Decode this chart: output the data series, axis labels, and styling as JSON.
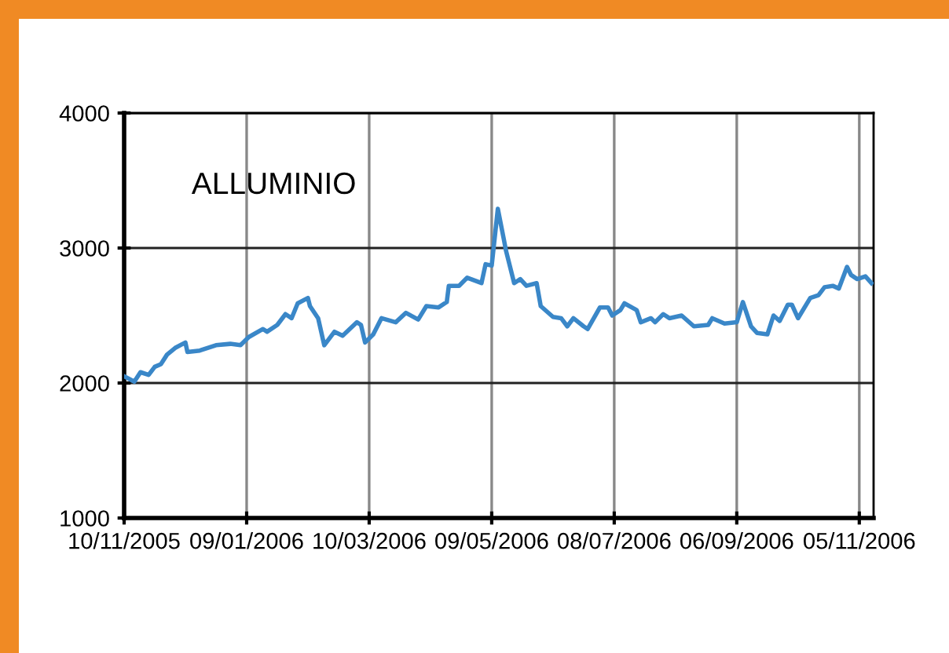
{
  "chart_data": {
    "type": "line",
    "title": "ALLUMINIO",
    "xlim": [
      "2005-11-10",
      "2006-11-12"
    ],
    "ylim": [
      1000,
      4000
    ],
    "xticks": [
      {
        "value": "2005-11-10",
        "label": "10/11/2005"
      },
      {
        "value": "2006-01-09",
        "label": "09/01/2006"
      },
      {
        "value": "2006-03-10",
        "label": "10/03/2006"
      },
      {
        "value": "2006-05-09",
        "label": "09/05/2006"
      },
      {
        "value": "2006-07-08",
        "label": "08/07/2006"
      },
      {
        "value": "2006-09-06",
        "label": "06/09/2006"
      },
      {
        "value": "2006-11-05",
        "label": "05/11/2006"
      }
    ],
    "yticks": [
      1000,
      2000,
      3000,
      4000
    ],
    "grid": true,
    "marker": "none",
    "line_style": "solid",
    "x": [
      "2005-11-10",
      "2005-11-15",
      "2005-11-18",
      "2005-11-22",
      "2005-11-25",
      "2005-11-28",
      "2005-12-01",
      "2005-12-05",
      "2005-12-10",
      "2005-12-11",
      "2005-12-17",
      "2005-12-25",
      "2006-01-01",
      "2006-01-06",
      "2006-01-10",
      "2006-01-17",
      "2006-01-19",
      "2006-01-24",
      "2006-01-28",
      "2006-01-31",
      "2006-02-03",
      "2006-02-08",
      "2006-02-09",
      "2006-02-13",
      "2006-02-16",
      "2006-02-21",
      "2006-02-25",
      "2006-03-04",
      "2006-03-06",
      "2006-03-08",
      "2006-03-12",
      "2006-03-16",
      "2006-03-23",
      "2006-03-28",
      "2006-04-03",
      "2006-04-07",
      "2006-04-13",
      "2006-04-17",
      "2006-04-18",
      "2006-04-23",
      "2006-04-27",
      "2006-05-04",
      "2006-05-06",
      "2006-05-09",
      "2006-05-12",
      "2006-05-15",
      "2006-05-16",
      "2006-05-20",
      "2006-05-23",
      "2006-05-26",
      "2006-05-31",
      "2006-06-02",
      "2006-06-08",
      "2006-06-12",
      "2006-06-15",
      "2006-06-18",
      "2006-06-23",
      "2006-06-25",
      "2006-07-01",
      "2006-07-05",
      "2006-07-07",
      "2006-07-11",
      "2006-07-13",
      "2006-07-19",
      "2006-07-21",
      "2006-07-26",
      "2006-07-28",
      "2006-08-01",
      "2006-08-04",
      "2006-08-10",
      "2006-08-16",
      "2006-08-23",
      "2006-08-25",
      "2006-08-31",
      "2006-09-06",
      "2006-09-09",
      "2006-09-13",
      "2006-09-16",
      "2006-09-21",
      "2006-09-24",
      "2006-09-27",
      "2006-10-01",
      "2006-10-03",
      "2006-10-06",
      "2006-10-12",
      "2006-10-16",
      "2006-10-19",
      "2006-10-23",
      "2006-10-26",
      "2006-10-30",
      "2006-11-01",
      "2006-11-04",
      "2006-11-08",
      "2006-11-11"
    ],
    "series": [
      {
        "color": "#3a87c8",
        "values": [
          2050,
          2010,
          2080,
          2060,
          2120,
          2140,
          2210,
          2260,
          2300,
          2230,
          2240,
          2280,
          2290,
          2280,
          2340,
          2400,
          2380,
          2430,
          2510,
          2480,
          2590,
          2630,
          2570,
          2480,
          2280,
          2380,
          2350,
          2450,
          2430,
          2300,
          2360,
          2480,
          2450,
          2520,
          2470,
          2570,
          2560,
          2600,
          2720,
          2720,
          2780,
          2740,
          2880,
          2870,
          3290,
          3060,
          2980,
          2740,
          2770,
          2720,
          2740,
          2570,
          2490,
          2480,
          2420,
          2480,
          2420,
          2400,
          2560,
          2560,
          2500,
          2540,
          2590,
          2540,
          2450,
          2480,
          2450,
          2510,
          2480,
          2500,
          2420,
          2430,
          2480,
          2440,
          2450,
          2600,
          2420,
          2370,
          2360,
          2500,
          2460,
          2580,
          2580,
          2480,
          2630,
          2650,
          2710,
          2720,
          2700,
          2860,
          2800,
          2770,
          2790,
          2740
        ]
      }
    ]
  }
}
